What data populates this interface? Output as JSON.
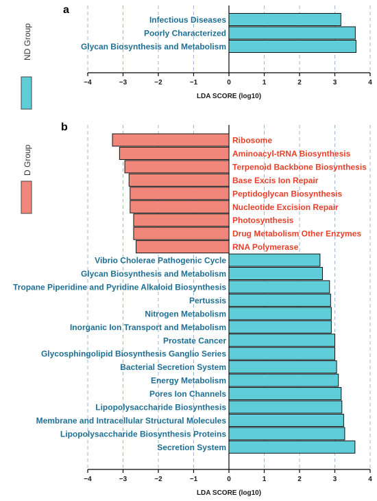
{
  "figure": {
    "panel_labels": [
      "a",
      "b"
    ],
    "legend": [
      {
        "name": "ND Group",
        "color": "#5ecdd8"
      },
      {
        "name": "D Group",
        "color": "#f0877a"
      }
    ]
  },
  "colors": {
    "nd_bar": "#5ecdd8",
    "d_bar": "#f0877a",
    "nd_text": "#1f6f94",
    "d_text": "#e8402a",
    "grid": "#9ab8d6"
  },
  "chart_data": [
    {
      "type": "bar",
      "orientation": "horizontal",
      "panel": "a",
      "xlabel": "LDA SCORE (log10)",
      "xlim": [
        -4,
        4
      ],
      "xticks": [
        -4,
        -3,
        -2,
        -1,
        0,
        1,
        2,
        3,
        4
      ],
      "grid": "vertical dashed",
      "categories": [
        "Infectious Diseases",
        "Poorly Characterized",
        "Glycan Biosynthesis and Metabolism"
      ],
      "groups": [
        "ND",
        "ND",
        "ND"
      ],
      "values": [
        3.17,
        3.58,
        3.6
      ]
    },
    {
      "type": "bar",
      "orientation": "horizontal",
      "panel": "b",
      "xlabel": "LDA SCORE (log10)",
      "xlim": [
        -4,
        4
      ],
      "xticks": [
        -4,
        -3,
        -2,
        -1,
        0,
        1,
        2,
        3,
        4
      ],
      "grid": "vertical dashed",
      "categories": [
        "Ribosome",
        "Aminoacyl-tRNA Biosynthesis",
        "Terpenoid Backbone Biosynthesis",
        "Base Excis Ion Repair",
        "Peptidoglycan Biosynthesis",
        "Nucleotide Excision Repair",
        "Photosynthesis",
        "Drug Metabolism Other Enzymes",
        "RNA Polymerase",
        "Vibrio Cholerae Pathogenic Cycle",
        "Glycan Biosynthesis and Metabolism",
        "Tropane Piperidine and Pyridine Alkaloid Biosynthesis",
        "Pertussis",
        "Nitrogen Metabolism",
        "Inorganic Ion Transport and Metabolism",
        "Prostate Cancer",
        "Glycosphingolipid Biosynthesis Ganglio Series",
        "Bacterial Secretion System",
        "Energy Metabolism",
        "Pores Ion Channels",
        "Lipopolysaccharide Biosynthesis",
        "Membrane and Intracellular Structural Molecules",
        "Lipopolysaccharide Biosynthesis Proteins",
        "Secretion System"
      ],
      "groups": [
        "D",
        "D",
        "D",
        "D",
        "D",
        "D",
        "D",
        "D",
        "D",
        "ND",
        "ND",
        "ND",
        "ND",
        "ND",
        "ND",
        "ND",
        "ND",
        "ND",
        "ND",
        "ND",
        "ND",
        "ND",
        "ND",
        "ND"
      ],
      "values": [
        -3.3,
        -3.1,
        -2.95,
        -2.83,
        -2.8,
        -2.8,
        -2.7,
        -2.7,
        -2.63,
        2.58,
        2.65,
        2.85,
        2.88,
        2.9,
        2.9,
        3.0,
        3.0,
        3.05,
        3.1,
        3.18,
        3.2,
        3.25,
        3.28,
        3.57
      ]
    }
  ]
}
